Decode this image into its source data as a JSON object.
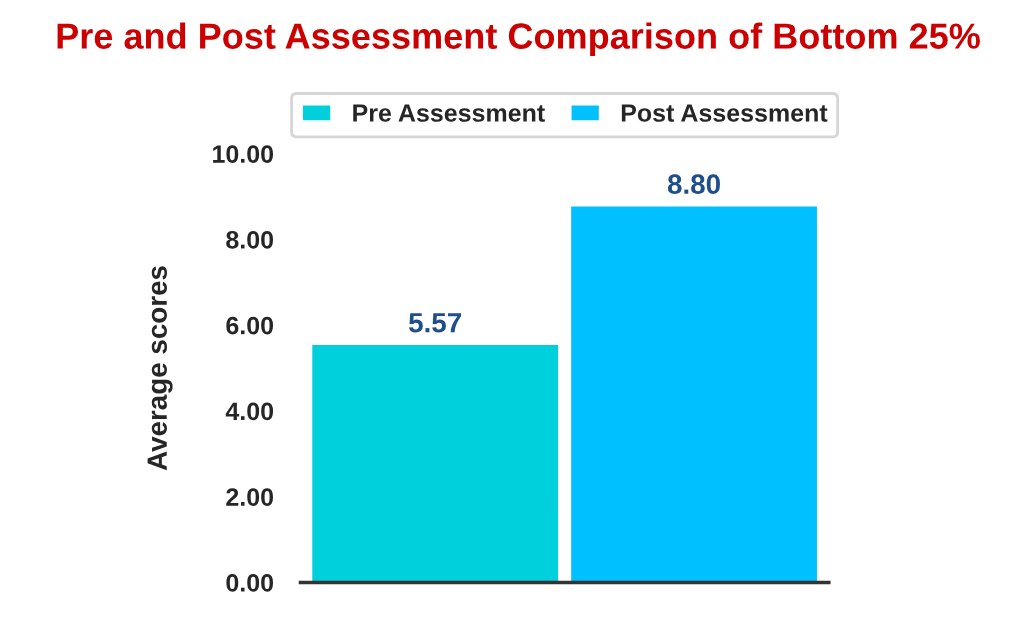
{
  "chart_data": {
    "type": "bar",
    "title": "Pre and Post Assessment Comparison of Bottom 25%",
    "ylabel": "Average scores",
    "categories": [
      null
    ],
    "series": [
      {
        "name": "Pre Assessment",
        "color": "#00d0dc",
        "values": [
          5.57
        ],
        "value_labels": [
          "5.57"
        ]
      },
      {
        "name": "Post Assessment",
        "color": "#00c0ff",
        "values": [
          8.8
        ],
        "value_labels": [
          "8.80"
        ]
      }
    ],
    "ylim": [
      0,
      10
    ],
    "yticks": [
      {
        "value": 0,
        "label": "0.00"
      },
      {
        "value": 2,
        "label": "2.00"
      },
      {
        "value": 4,
        "label": "4.00"
      },
      {
        "value": 6,
        "label": "6.00"
      },
      {
        "value": 8,
        "label": "8.00"
      },
      {
        "value": 10,
        "label": "10.00"
      }
    ],
    "grid": false,
    "legend": "top"
  }
}
